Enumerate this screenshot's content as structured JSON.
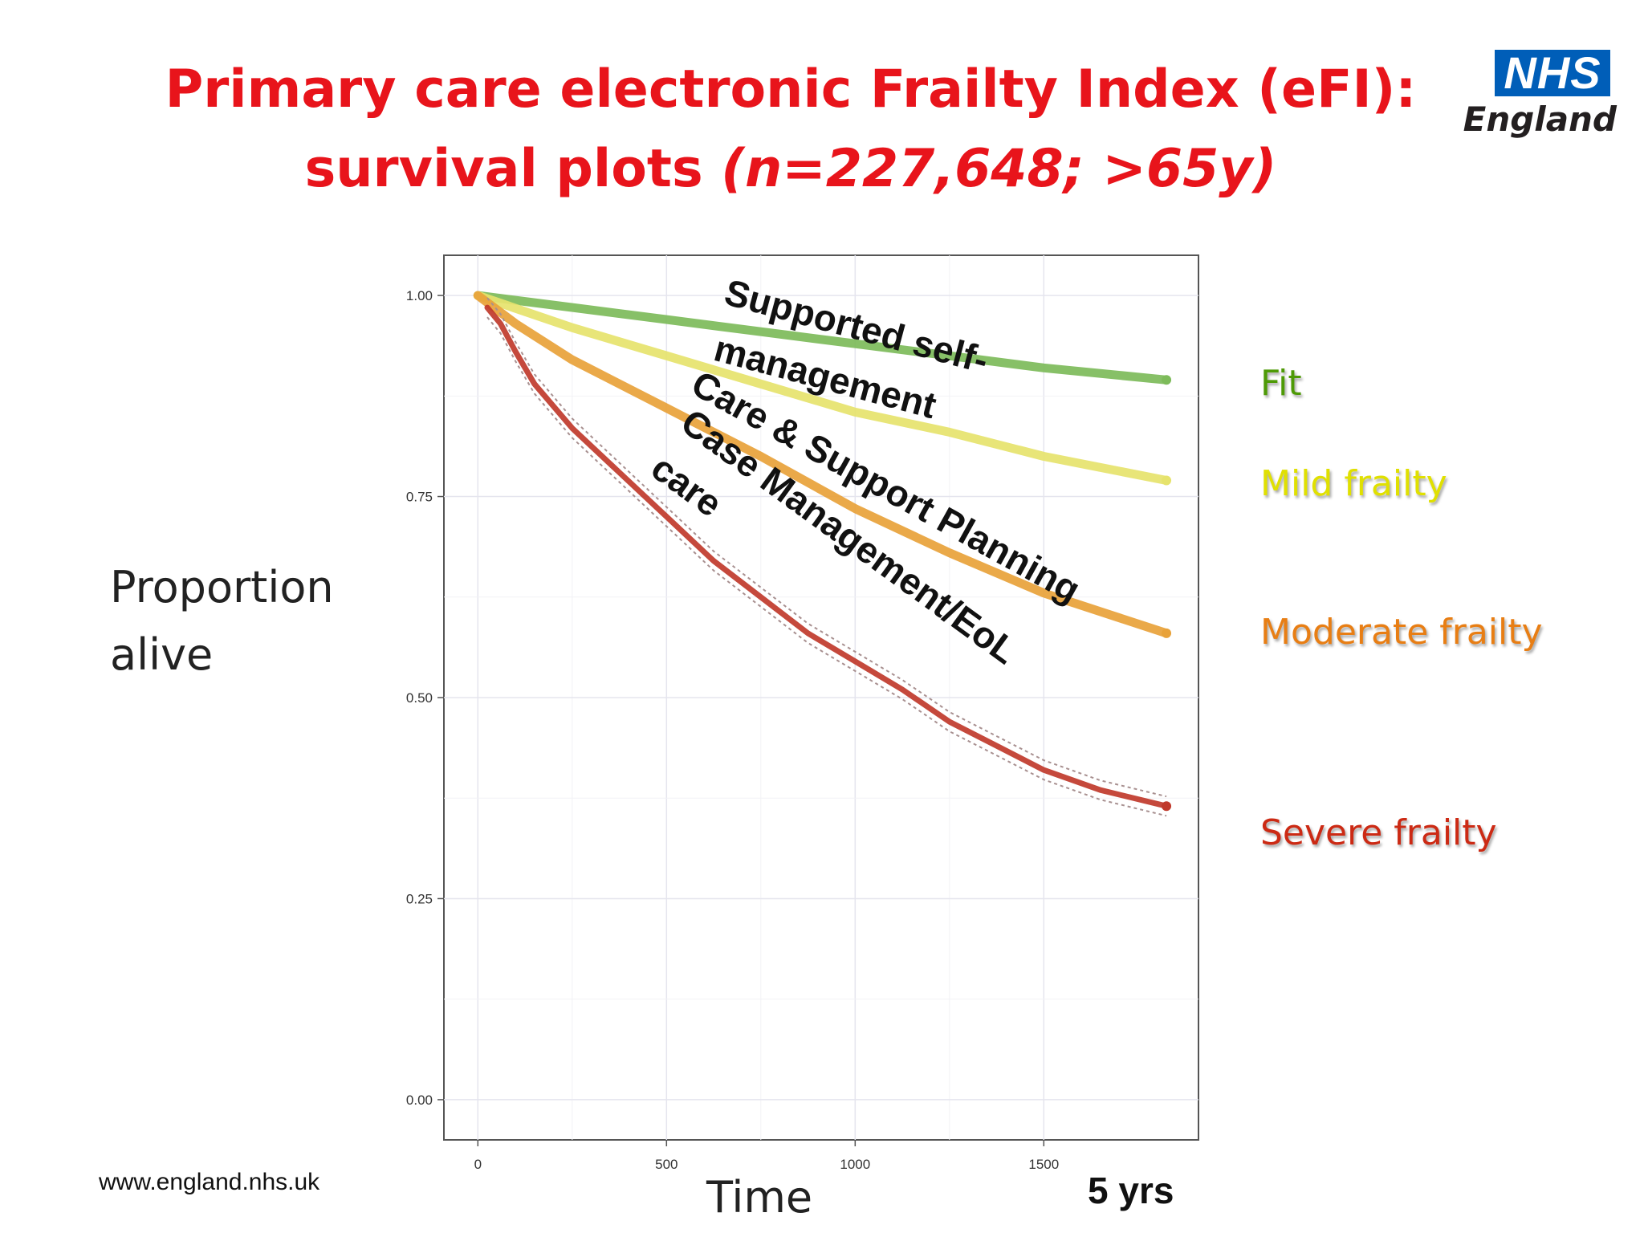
{
  "title": {
    "line1": "Primary care electronic Frailty Index (eFI):",
    "line2_plain": "survival plots ",
    "line2_italic": "(n=227,648;  >65y)"
  },
  "logo": {
    "box_text": "NHS",
    "sub_text": "England"
  },
  "footer_url": "www.england.nhs.uk",
  "five_years_label": "5 yrs",
  "colors": {
    "title": "#e8141b",
    "fit": "#4e9a06",
    "mild": "#e0e000",
    "moderate": "#e87e14",
    "severe": "#cc2a14"
  },
  "chart_data": {
    "type": "line",
    "title": "",
    "xlabel": "Time",
    "ylabel": "Proportion alive",
    "xlim": [
      -90,
      1910
    ],
    "ylim": [
      -0.05,
      1.05
    ],
    "x_ticks": [
      0,
      500,
      1000,
      1500
    ],
    "x_tick_labels": [
      "0",
      "500",
      "1000",
      "1500"
    ],
    "y_ticks": [
      0,
      0.25,
      0.5,
      0.75,
      1.0
    ],
    "y_tick_labels": [
      "0.00",
      "0.25",
      "0.50",
      "0.75",
      "1.00"
    ],
    "grid": true,
    "series": [
      {
        "name": "Fit",
        "color": "#7dbb5a",
        "legend_color": "#4e9a06",
        "x": [
          0,
          250,
          500,
          750,
          1000,
          1250,
          1500,
          1825
        ],
        "y": [
          1.0,
          0.985,
          0.97,
          0.955,
          0.94,
          0.925,
          0.91,
          0.895
        ]
      },
      {
        "name": "Mild frailty",
        "color": "#e6e36c",
        "legend_color": "#e0e000",
        "x": [
          0,
          250,
          500,
          750,
          1000,
          1250,
          1500,
          1825
        ],
        "y": [
          1.0,
          0.96,
          0.925,
          0.89,
          0.855,
          0.83,
          0.8,
          0.77
        ]
      },
      {
        "name": "Moderate frailty",
        "color": "#e8a23a",
        "legend_color": "#e87e14",
        "x": [
          0,
          100,
          250,
          500,
          750,
          1000,
          1250,
          1500,
          1825
        ],
        "y": [
          1.0,
          0.965,
          0.92,
          0.86,
          0.8,
          0.735,
          0.68,
          0.63,
          0.58
        ]
      },
      {
        "name": "Severe frailty",
        "color": "#c0392b",
        "legend_color": "#cc2a14",
        "x": [
          25,
          60,
          100,
          150,
          250,
          375,
          500,
          625,
          750,
          875,
          1000,
          1125,
          1250,
          1375,
          1500,
          1650,
          1825
        ],
        "y": [
          0.985,
          0.965,
          0.93,
          0.89,
          0.835,
          0.78,
          0.725,
          0.67,
          0.625,
          0.58,
          0.545,
          0.51,
          0.47,
          0.44,
          0.41,
          0.385,
          0.365
        ]
      }
    ],
    "annotations": [
      "Supported self-",
      "management",
      "Care & Support Planning",
      "Case Management/EoL",
      "care"
    ]
  }
}
